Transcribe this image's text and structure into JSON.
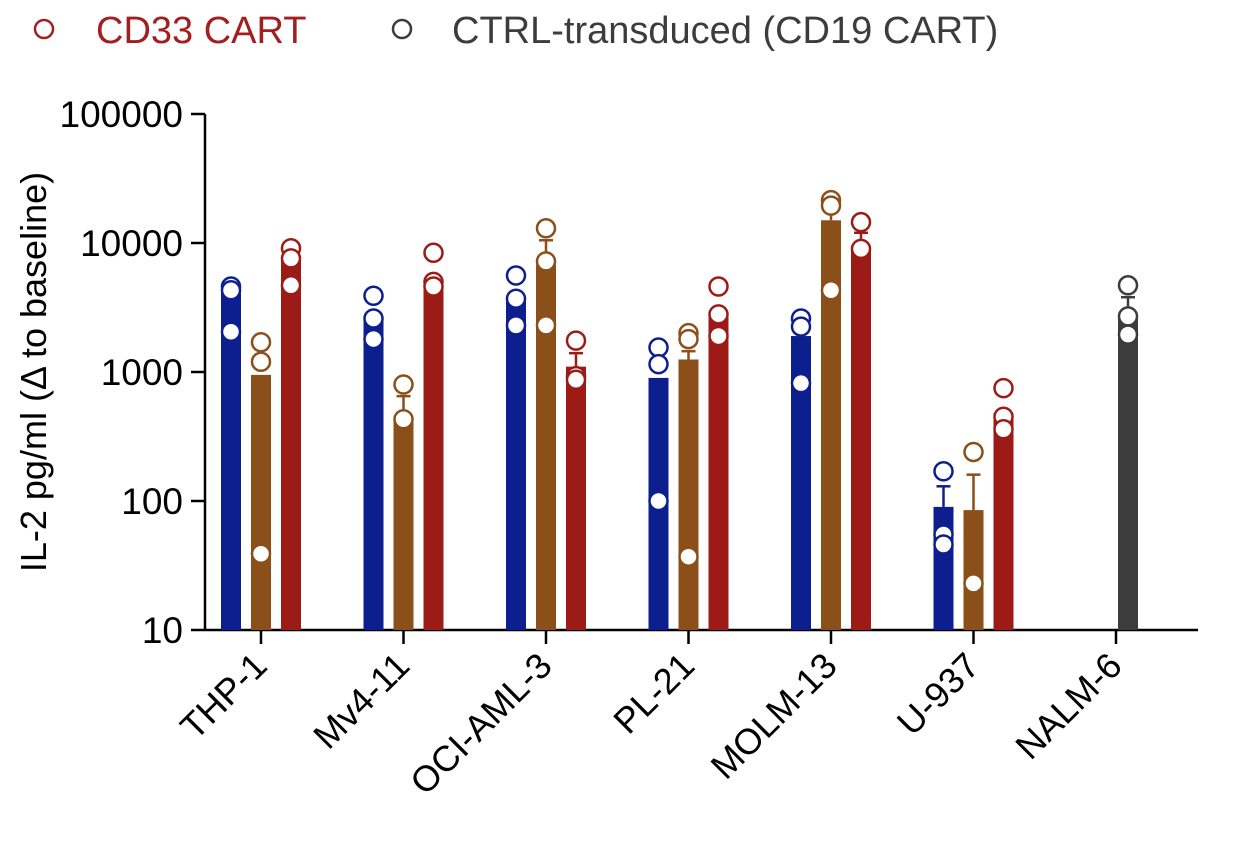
{
  "chart_data": {
    "type": "bar",
    "title": "",
    "xlabel": "",
    "ylabel": "IL-2 pg/ml (Δ to baseline)",
    "yscale": "log",
    "ylim": [
      10,
      100000
    ],
    "yticks": [
      {
        "value": 10,
        "label": "10"
      },
      {
        "value": 100,
        "label": "100"
      },
      {
        "value": 1000,
        "label": "1000"
      },
      {
        "value": 10000,
        "label": "10000"
      },
      {
        "value": 100000,
        "label": "100000"
      }
    ],
    "categories": [
      "THP-1",
      "Mv4-11",
      "OCI-AML-3",
      "PL-21",
      "MOLM-13",
      "U-937",
      "NALM-6"
    ],
    "legend": {
      "placement": "top-left",
      "entries": [
        {
          "label": "CD33 CART",
          "color": "#a31f1f",
          "text_color": "#a31f1f"
        },
        {
          "label": "CTRL-transduced (CD19 CART)",
          "color": "#3c3c3c",
          "text_color": "#3c3c3c"
        }
      ]
    },
    "series": [
      {
        "color": "#0d1f8f",
        "bars": [
          {
            "category": "THP-1",
            "value": 4200,
            "error_upper": null,
            "points": [
              4600,
              4300,
              2050
            ]
          },
          {
            "category": "Mv4-11",
            "value": 2700,
            "error_upper": null,
            "points": [
              3900,
              2600,
              1800
            ]
          },
          {
            "category": "OCI-AML-3",
            "value": 3800,
            "error_upper": null,
            "points": [
              5600,
              3700,
              2300
            ]
          },
          {
            "category": "PL-21",
            "value": 900,
            "error_upper": null,
            "points": [
              1550,
              1150,
              100
            ]
          },
          {
            "category": "MOLM-13",
            "value": 1900,
            "error_upper": null,
            "points": [
              2600,
              2250,
              820
            ]
          },
          {
            "category": "U-937",
            "value": 90,
            "error_upper": 130,
            "points": [
              170,
              55,
              46
            ]
          }
        ]
      },
      {
        "color": "#8b4f1a",
        "bars": [
          {
            "category": "THP-1",
            "value": 950,
            "error_upper": null,
            "points": [
              1700,
              1200,
              39
            ]
          },
          {
            "category": "Mv4-11",
            "value": 420,
            "error_upper": 650,
            "points": [
              800,
              430
            ]
          },
          {
            "category": "OCI-AML-3",
            "value": 6800,
            "error_upper": 10500,
            "points": [
              13000,
              7200,
              2300
            ]
          },
          {
            "category": "PL-21",
            "value": 1250,
            "error_upper": 1450,
            "points": [
              2000,
              1800,
              37
            ]
          },
          {
            "category": "MOLM-13",
            "value": 15000,
            "error_upper": 20000,
            "points": [
              21500,
              19500,
              4300
            ]
          },
          {
            "category": "U-937",
            "value": 85,
            "error_upper": 160,
            "points": [
              240,
              23
            ]
          }
        ]
      },
      {
        "color": "#9c1b16",
        "bars": [
          {
            "category": "THP-1",
            "value": 7500,
            "error_upper": null,
            "points": [
              9100,
              7600,
              4700
            ]
          },
          {
            "category": "Mv4-11",
            "value": 5200,
            "error_upper": null,
            "points": [
              8400,
              5000,
              4600
            ]
          },
          {
            "category": "OCI-AML-3",
            "value": 1100,
            "error_upper": 1400,
            "points": [
              1750,
              930,
              870
            ]
          },
          {
            "category": "PL-21",
            "value": 2700,
            "error_upper": null,
            "points": [
              4600,
              2800,
              1900
            ]
          },
          {
            "category": "MOLM-13",
            "value": 9500,
            "error_upper": 12000,
            "points": [
              14500,
              9000
            ]
          },
          {
            "category": "U-937",
            "value": 480,
            "error_upper": null,
            "points": [
              750,
              450,
              360
            ]
          }
        ]
      },
      {
        "color": "#3c3c3c",
        "bars": [
          {
            "category": "NALM-6",
            "value": 2700,
            "error_upper": 3800,
            "points": [
              4700,
              2700,
              1950
            ]
          }
        ]
      }
    ]
  }
}
